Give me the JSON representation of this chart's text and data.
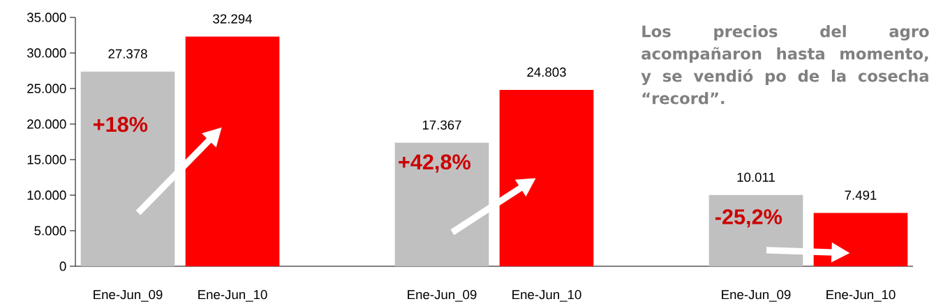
{
  "chart_data": {
    "type": "bar",
    "categories": [
      "Ene-Jun_09",
      "Ene-Jun_10",
      null,
      "Ene-Jun_09",
      "Ene-Jun_10",
      null,
      "Ene-Jun_09",
      "Ene-Jun_10"
    ],
    "values": [
      27378,
      32294,
      null,
      17367,
      24803,
      null,
      10011,
      7491
    ],
    "colors": [
      "#c0c0c0",
      "#ff0000",
      null,
      "#c0c0c0",
      "#ff0000",
      null,
      "#c0c0c0",
      "#ff0000"
    ],
    "value_labels": [
      "27.378",
      "32.294",
      null,
      "17.367",
      "24.803",
      null,
      "10.011",
      "7.491"
    ],
    "ylim": [
      0,
      35000
    ],
    "yticks": [
      {
        "value": 0,
        "label": "0"
      },
      {
        "value": 5000,
        "label": "5.000"
      },
      {
        "value": 10000,
        "label": "10.000"
      },
      {
        "value": 15000,
        "label": "15.000"
      },
      {
        "value": 20000,
        "label": "20.000"
      },
      {
        "value": 25000,
        "label": "25.000"
      },
      {
        "value": 30000,
        "label": "30.000"
      },
      {
        "value": 35000,
        "label": "35.000"
      }
    ],
    "annotations": [
      "+18%",
      "+42,8%",
      "-25,2%",
      "Los precios del agro acompañaron hasta momento, y se vendió po de la cosecha “record”."
    ],
    "grid": false
  }
}
